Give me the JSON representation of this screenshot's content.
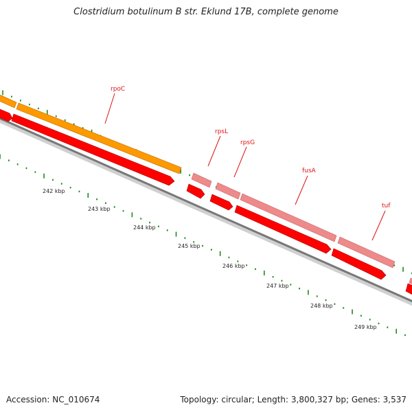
{
  "title": "Clostridium botulinum B str. Eklund 17B, complete genome",
  "footer": {
    "accession": "Accession: NC_010674",
    "summary": "Topology: circular; Length: 3,800,327 bp; Genes: 3,537"
  },
  "colors": {
    "background": "#ffffff",
    "backbone": "#777777",
    "orange_gene": "#ff9900",
    "pink_gene": "#ee8a8a",
    "red_cds": "#ff0000",
    "tick": "#1a8a1a",
    "gene_label": "#dd1111",
    "tick_label": "#222222"
  },
  "scale": {
    "unit": "kbp",
    "labels": [
      "242 kbp",
      "243 kbp",
      "244 kbp",
      "245 kbp",
      "246 kbp",
      "247 kbp",
      "248 kbp",
      "249 kbp"
    ]
  },
  "genes": [
    {
      "name": "rpoC"
    },
    {
      "name": "rpsL"
    },
    {
      "name": "rpsG"
    },
    {
      "name": "fusA"
    },
    {
      "name": "tuf"
    }
  ]
}
